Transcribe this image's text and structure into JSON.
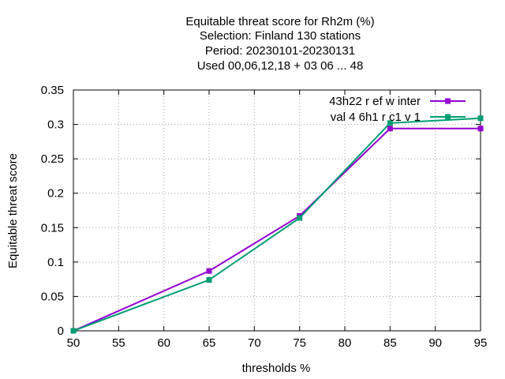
{
  "chart_data": {
    "type": "line",
    "title_lines": [
      "Equitable threat score  for Rh2m (%)",
      "Selection: Finland    130 stations",
      "Period: 20230101-20230131",
      "Used  00,06,12,18  + 03 06 ... 48"
    ],
    "xlabel": "thresholds %",
    "ylabel": "Equitable threat score",
    "xlim": [
      50,
      95
    ],
    "ylim": [
      0,
      0.35
    ],
    "xticks": [
      50,
      55,
      60,
      65,
      70,
      75,
      80,
      85,
      90,
      95
    ],
    "yticks": [
      0,
      0.05,
      0.1,
      0.15,
      0.2,
      0.25,
      0.3,
      0.35
    ],
    "xtick_labels": [
      "50",
      "55",
      "60",
      "65",
      "70",
      "75",
      "80",
      "85",
      "90",
      "95"
    ],
    "ytick_labels": [
      "0",
      "0.05",
      "0.1",
      "0.15",
      "0.2",
      "0.25",
      "0.3",
      "0.35"
    ],
    "grid": true,
    "legend_position": "top-right",
    "series": [
      {
        "name": "43h22 r ef w inter",
        "color": "#9400d3",
        "x": [
          50,
          65,
          75,
          85,
          95
        ],
        "y": [
          0.0,
          0.087,
          0.167,
          0.294,
          0.294
        ]
      },
      {
        "name": "val 4 6h1 r c1 v 1",
        "color": "#009e73",
        "x": [
          50,
          65,
          75,
          85,
          95
        ],
        "y": [
          0.0,
          0.074,
          0.164,
          0.302,
          0.309
        ]
      }
    ]
  }
}
